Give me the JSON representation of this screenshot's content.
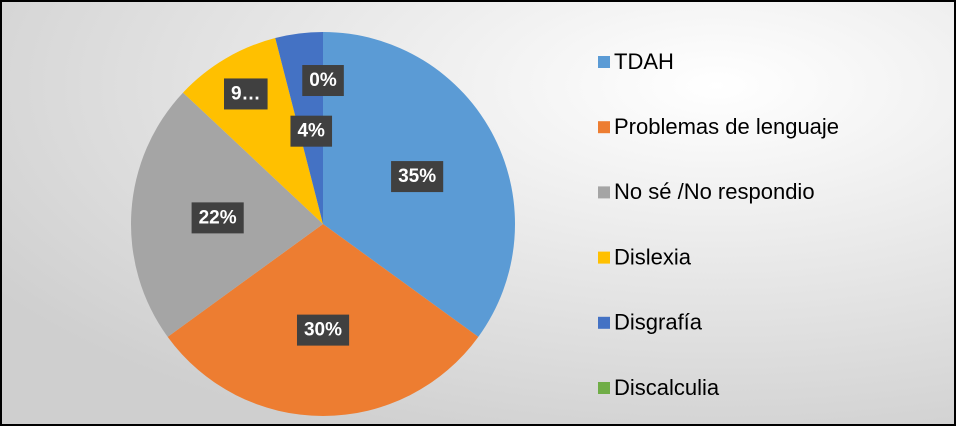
{
  "chart_data": {
    "type": "pie",
    "categories": [
      "TDAH",
      "Problemas de lenguaje",
      "No sé /No respondio",
      "Dislexia",
      "Disgrafía",
      "Discalculia"
    ],
    "values": [
      35,
      30,
      22,
      9,
      4,
      0
    ],
    "value_labels": [
      "35%",
      "30%",
      "22%",
      "9…",
      "4%",
      "0%"
    ],
    "colors": [
      "#5b9bd5",
      "#ed7d31",
      "#a5a5a5",
      "#ffc000",
      "#4472c4",
      "#70ad47"
    ],
    "legend": "right"
  }
}
